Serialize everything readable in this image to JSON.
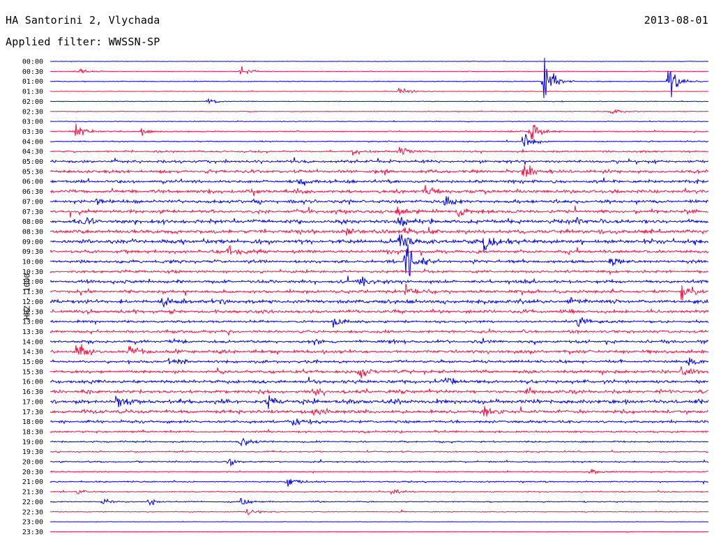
{
  "header": {
    "station": "HA Santorini 2, Vlychada",
    "date": "2013-08-01",
    "filter": "Applied filter: WWSSN-SP",
    "channel": "HHZ - 1000"
  },
  "colors": {
    "odd": "#0000dd",
    "even": "#ee1144"
  },
  "chart_data": {
    "type": "line",
    "title": "HA Santorini 2, Vlychada",
    "subtitle": "Applied filter: WWSSN-SP",
    "ylabel": "HHZ - 1000",
    "x": [],
    "categories": [
      "00:00",
      "00:30",
      "01:00",
      "01:30",
      "02:00",
      "02:30",
      "03:00",
      "03:30",
      "04:00",
      "04:30",
      "05:00",
      "05:30",
      "06:00",
      "06:30",
      "07:00",
      "07:30",
      "08:00",
      "08:30",
      "09:00",
      "09:30",
      "10:00",
      "10:30",
      "11:00",
      "11:30",
      "12:00",
      "12:30",
      "13:00",
      "13:30",
      "14:00",
      "14:30",
      "15:00",
      "15:30",
      "16:00",
      "16:30",
      "17:00",
      "17:30",
      "18:00",
      "18:30",
      "19:00",
      "19:30",
      "20:00",
      "20:30",
      "21:00",
      "21:30",
      "22:00",
      "22:30",
      "23:00",
      "23:30"
    ],
    "noise_level": [
      0.3,
      0.4,
      0.6,
      0.4,
      0.5,
      0.5,
      0.5,
      0.8,
      0.8,
      1.3,
      2.0,
      2.2,
      2.2,
      2.6,
      2.4,
      2.5,
      2.8,
      2.7,
      3.0,
      2.4,
      2.2,
      1.8,
      2.2,
      2.2,
      2.8,
      2.5,
      1.8,
      2.0,
      2.2,
      2.4,
      2.0,
      2.2,
      2.4,
      2.4,
      3.0,
      2.6,
      2.0,
      1.4,
      1.2,
      1.0,
      1.0,
      0.8,
      1.0,
      0.8,
      0.8,
      0.6,
      0.3,
      0.3
    ],
    "events": [
      [],
      [
        [
          0.04,
          6
        ],
        [
          0.29,
          8
        ]
      ],
      [
        [
          0.75,
          34
        ],
        [
          0.94,
          26
        ]
      ],
      [
        [
          0.53,
          6
        ]
      ],
      [
        [
          0.24,
          4
        ]
      ],
      [
        [
          0.85,
          6
        ]
      ],
      [],
      [
        [
          0.04,
          14
        ],
        [
          0.73,
          16
        ],
        [
          0.14,
          6
        ]
      ],
      [
        [
          0.72,
          16
        ]
      ],
      [
        [
          0.46,
          6
        ],
        [
          0.53,
          7
        ]
      ],
      [],
      [
        [
          0.72,
          14
        ]
      ],
      [
        [
          0.38,
          8
        ]
      ],
      [
        [
          0.57,
          7
        ]
      ],
      [
        [
          0.07,
          6
        ],
        [
          0.6,
          8
        ]
      ],
      [
        [
          0.62,
          8
        ],
        [
          0.53,
          10
        ]
      ],
      [
        [
          0.05,
          6
        ],
        [
          0.53,
          8
        ],
        [
          0.8,
          6
        ]
      ],
      [
        [
          0.45,
          8
        ],
        [
          0.54,
          7
        ]
      ],
      [
        [
          0.53,
          22
        ],
        [
          0.66,
          16
        ]
      ],
      [
        [
          0.27,
          10
        ]
      ],
      [
        [
          0.54,
          32
        ],
        [
          0.85,
          8
        ]
      ],
      [],
      [
        [
          0.47,
          8
        ]
      ],
      [
        [
          0.96,
          14
        ],
        [
          0.54,
          10
        ]
      ],
      [
        [
          0.17,
          10
        ],
        [
          0.79,
          8
        ]
      ],
      [],
      [
        [
          0.43,
          6
        ],
        [
          0.8,
          8
        ]
      ],
      [],
      [
        [
          0.4,
          6
        ]
      ],
      [
        [
          0.04,
          18
        ],
        [
          0.12,
          12
        ]
      ],
      [
        [
          0.18,
          8
        ],
        [
          0.97,
          8
        ]
      ],
      [
        [
          0.47,
          10
        ],
        [
          0.96,
          12
        ]
      ],
      [
        [
          0.6,
          8
        ]
      ],
      [
        [
          0.4,
          6
        ],
        [
          0.72,
          7
        ]
      ],
      [
        [
          0.1,
          8
        ],
        [
          0.33,
          8
        ]
      ],
      [
        [
          0.66,
          9
        ],
        [
          0.4,
          7
        ]
      ],
      [
        [
          0.37,
          8
        ]
      ],
      [],
      [
        [
          0.29,
          8
        ]
      ],
      [],
      [
        [
          0.27,
          6
        ]
      ],
      [
        [
          0.82,
          5
        ]
      ],
      [
        [
          0.36,
          8
        ]
      ],
      [
        [
          0.04,
          5
        ],
        [
          0.52,
          5
        ]
      ],
      [
        [
          0.08,
          5
        ],
        [
          0.29,
          7
        ],
        [
          0.15,
          6
        ]
      ],
      [
        [
          0.3,
          6
        ]
      ],
      [],
      []
    ]
  }
}
